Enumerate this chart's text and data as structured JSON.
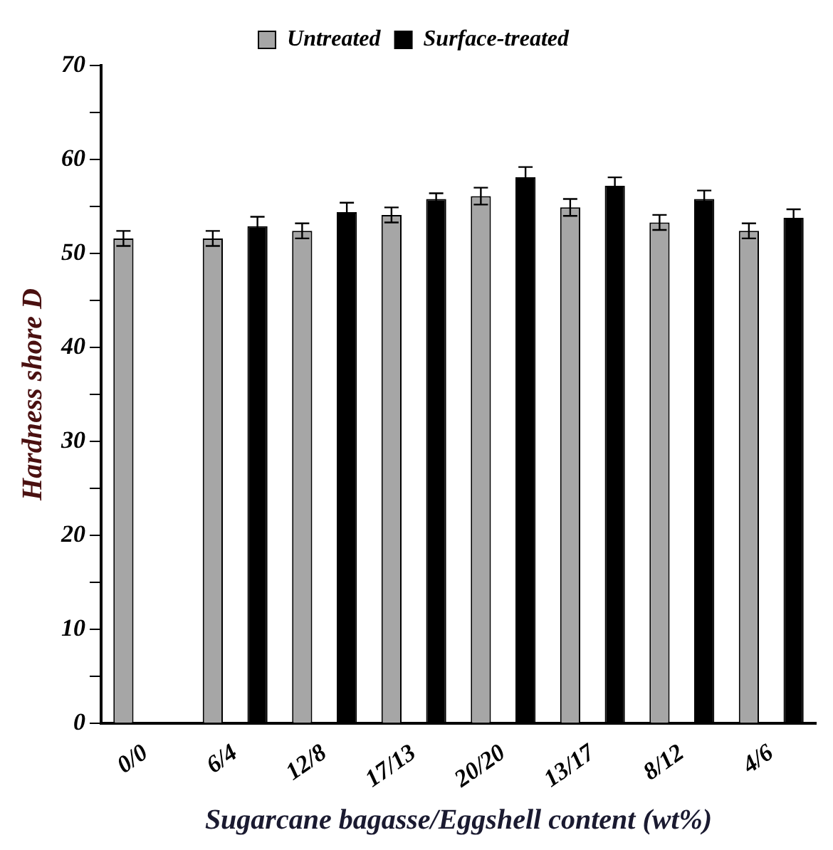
{
  "chart_data": {
    "type": "bar",
    "xlabel": "Sugarcane bagasse/Eggshell content (wt%)",
    "ylabel": "Hardness shore D",
    "categories": [
      "0/0",
      "6/4",
      "12/8",
      "17/13",
      "20/20",
      "13/17",
      "8/12",
      "4/6"
    ],
    "series": [
      {
        "name": "Untreated",
        "color": "#a6a6a6",
        "values": [
          51.6,
          51.6,
          52.4,
          54.1,
          56.1,
          54.9,
          53.3,
          52.4
        ],
        "errors": [
          0.8,
          0.8,
          0.8,
          0.8,
          0.9,
          0.9,
          0.8,
          0.8
        ]
      },
      {
        "name": "Surface-treated",
        "color": "#000000",
        "values": [
          null,
          52.9,
          54.4,
          55.8,
          58.1,
          57.2,
          55.8,
          53.8
        ],
        "errors": [
          null,
          1.0,
          1.0,
          0.6,
          1.1,
          0.9,
          0.9,
          0.9
        ]
      }
    ],
    "ylim": [
      0,
      70
    ],
    "yticks": [
      0,
      {
        "value": 5,
        "label": null
      },
      10,
      {
        "value": 15,
        "label": null
      },
      20,
      {
        "value": 25,
        "label": null
      },
      30,
      {
        "value": 35,
        "label": null
      },
      40,
      {
        "value": 45,
        "label": null
      },
      50,
      {
        "value": 55,
        "label": null
      },
      60,
      {
        "value": 65,
        "label": null
      },
      70
    ],
    "grid": false,
    "legend": "top"
  }
}
